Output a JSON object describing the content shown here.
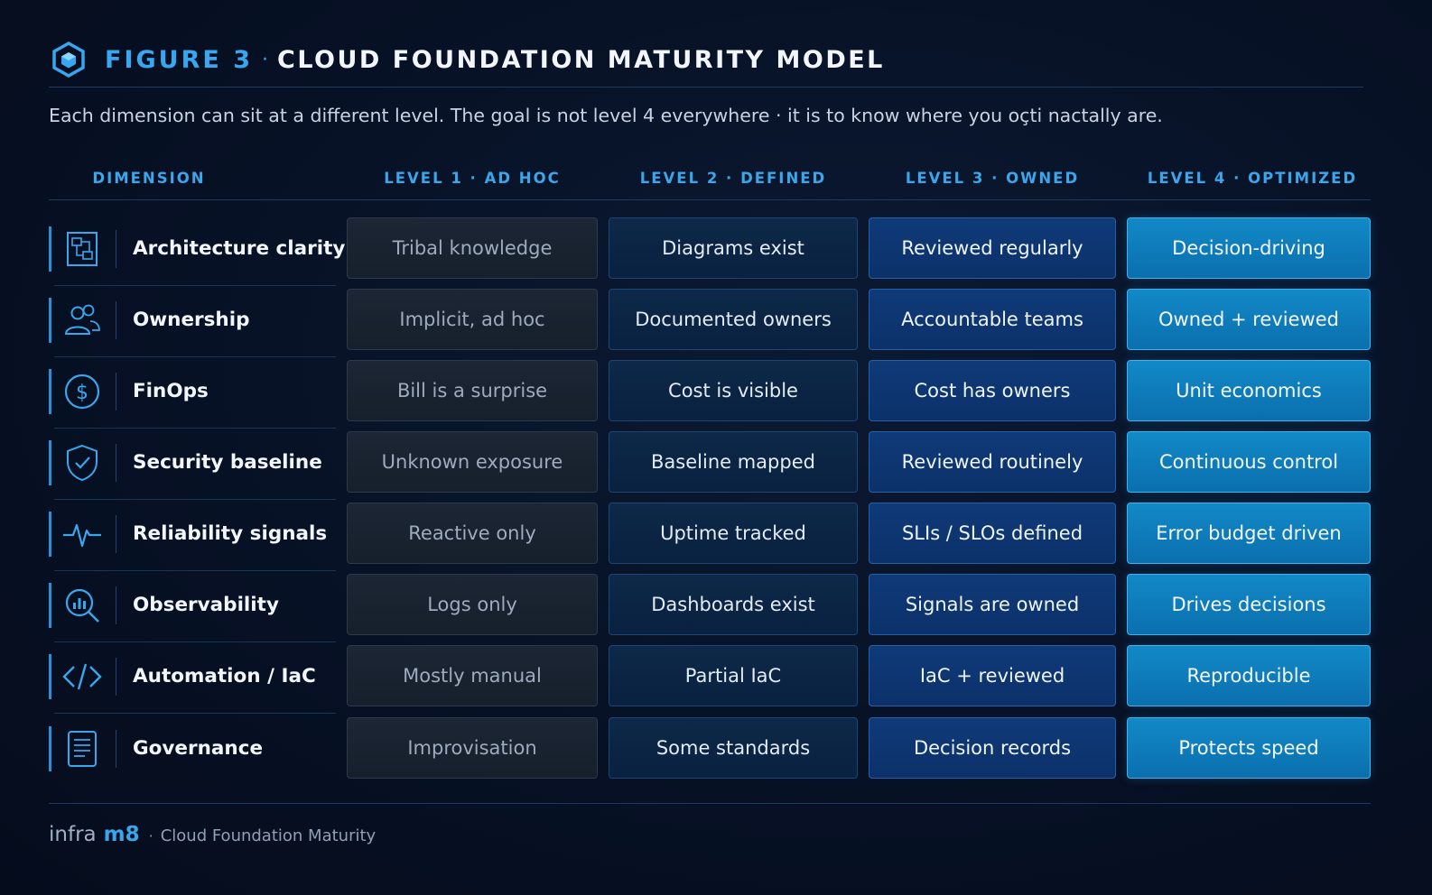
{
  "header": {
    "figure_label": "FIGURE 3",
    "separator": "·",
    "title": "CLOUD FOUNDATION MATURITY MODEL",
    "logo_icon": "hexagon-cube-icon"
  },
  "subtitle": "Each dimension can sit at a different level. The goal is not level 4 everywhere · it is to know where you oçti nactally are.",
  "columns": {
    "dimension": "DIMENSION",
    "level1": "LEVEL 1 · AD HOC",
    "level2": "LEVEL 2 · DEFINED",
    "level3": "LEVEL 3 · OWNED",
    "level4": "LEVEL 4 · OPTIMIZED"
  },
  "rows": [
    {
      "dimension": "Architecture clarity",
      "icon": "architecture-diagram-icon",
      "l1": "Tribal knowledge",
      "l2": "Diagrams exist",
      "l3": "Reviewed regularly",
      "l4": "Decision-driving"
    },
    {
      "dimension": "Ownership",
      "icon": "users-icon",
      "l1": "Implicit, ad hoc",
      "l2": "Documented owners",
      "l3": "Accountable teams",
      "l4": "Owned + reviewed"
    },
    {
      "dimension": "FinOps",
      "icon": "dollar-icon",
      "l1": "Bill is a surprise",
      "l2": "Cost is visible",
      "l3": "Cost has owners",
      "l4": "Unit economics"
    },
    {
      "dimension": "Security baseline",
      "icon": "shield-check-icon",
      "l1": "Unknown exposure",
      "l2": "Baseline mapped",
      "l3": "Reviewed routinely",
      "l4": "Continuous control"
    },
    {
      "dimension": "Reliability signals",
      "icon": "pulse-icon",
      "l1": "Reactive only",
      "l2": "Uptime tracked",
      "l3": "SLIs / SLOs defined",
      "l4": "Error budget driven"
    },
    {
      "dimension": "Observability",
      "icon": "magnifier-chart-icon",
      "l1": "Logs only",
      "l2": "Dashboards exist",
      "l3": "Signals are owned",
      "l4": "Drives decisions"
    },
    {
      "dimension": "Automation / IaC",
      "icon": "code-icon",
      "l1": "Mostly manual",
      "l2": "Partial IaC",
      "l3": "IaC + reviewed",
      "l4": "Reproducible"
    },
    {
      "dimension": "Governance",
      "icon": "document-icon",
      "l1": "Improvisation",
      "l2": "Some standards",
      "l3": "Decision records",
      "l4": "Protects speed"
    }
  ],
  "footer": {
    "brand_part1": "infra",
    "brand_part2": "m8",
    "separator": "·",
    "caption": "Cloud Foundation Maturity"
  },
  "colors": {
    "accent": "#37a7f0",
    "level1": "#1c2634",
    "level2": "#0d2848",
    "level3": "#0f3a78",
    "level4": "#1289c7"
  }
}
